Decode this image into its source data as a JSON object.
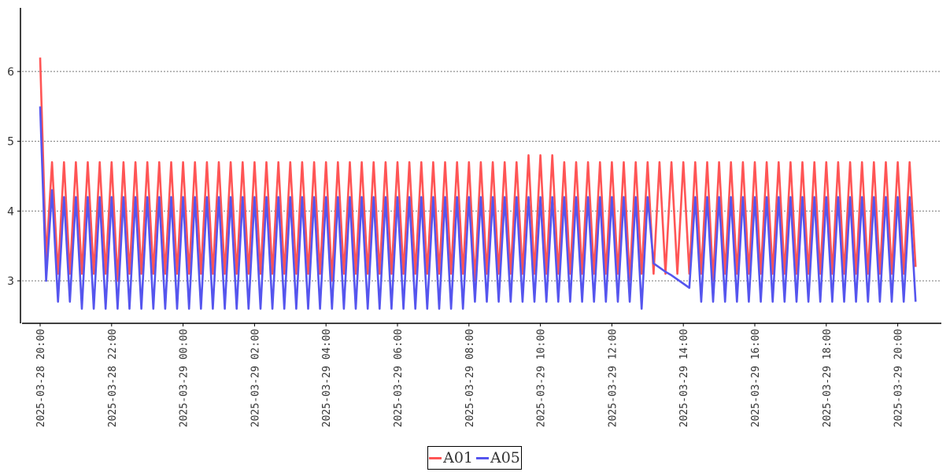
{
  "chart_data": {
    "type": "line",
    "title": "",
    "xlabel": "",
    "ylabel": "",
    "x_start": "2025-03-28 20:00",
    "x_step_minutes": 10,
    "ylim": [
      2.4,
      6.9
    ],
    "yticks": [
      "3",
      "4",
      "5",
      "6"
    ],
    "ytick_values": [
      3,
      4,
      5,
      6
    ],
    "grid": "horizontal dotted",
    "legend_position": "bottom-center",
    "xticks": [
      "2025-03-28 20:00",
      "2025-03-28 22:00",
      "2025-03-29 00:00",
      "2025-03-29 02:00",
      "2025-03-29 04:00",
      "2025-03-29 06:00",
      "2025-03-29 08:00",
      "2025-03-29 10:00",
      "2025-03-29 12:00",
      "2025-03-29 14:00",
      "2025-03-29 16:00",
      "2025-03-29 18:00",
      "2025-03-29 20:00"
    ],
    "xtick_minutes": [
      0,
      120,
      240,
      360,
      480,
      600,
      720,
      840,
      960,
      1080,
      1200,
      1320,
      1440
    ],
    "series": [
      {
        "name": "A01",
        "color": "#ff5555",
        "values": [
          6.2,
          3.3,
          4.7,
          3.1,
          4.7,
          3.1,
          4.7,
          3.1,
          4.7,
          3.1,
          4.7,
          3.1,
          4.7,
          3.0,
          4.7,
          3.1,
          4.7,
          3.1,
          4.7,
          3.1,
          4.7,
          3.1,
          4.7,
          3.1,
          4.7,
          3.1,
          4.7,
          3.1,
          4.7,
          3.1,
          4.7,
          3.1,
          4.7,
          3.1,
          4.7,
          3.1,
          4.7,
          3.1,
          4.7,
          3.1,
          4.7,
          3.1,
          4.7,
          3.1,
          4.7,
          3.1,
          4.7,
          3.1,
          4.7,
          3.0,
          4.7,
          3.1,
          4.7,
          3.1,
          4.7,
          3.1,
          4.7,
          3.1,
          4.7,
          3.1,
          4.7,
          3.1,
          4.7,
          3.1,
          4.7,
          3.1,
          4.7,
          3.1,
          4.7,
          3.1,
          4.7,
          3.1,
          4.7,
          3.0,
          4.7,
          3.1,
          4.7,
          3.1,
          4.7,
          3.1,
          4.7,
          3.1,
          4.8,
          3.1,
          4.8,
          3.1,
          4.8,
          3.1,
          4.7,
          3.1,
          4.7,
          3.1,
          4.7,
          3.1,
          4.7,
          3.1,
          4.7,
          3.1,
          4.7,
          3.0,
          4.7,
          3.1,
          4.7,
          3.1,
          4.7,
          3.1,
          4.7,
          3.1,
          4.7,
          3.1,
          4.7,
          3.1,
          4.7,
          3.0,
          4.7,
          3.1,
          4.7,
          3.1,
          4.7,
          3.1,
          4.7,
          3.1,
          4.7,
          3.1,
          4.7,
          3.1,
          4.7,
          3.1,
          4.7,
          3.1,
          4.7,
          3.1,
          4.7,
          3.1,
          4.7,
          3.1,
          4.7,
          3.1,
          4.7,
          3.1,
          4.7,
          3.1,
          4.7,
          3.1,
          4.7,
          3.1,
          4.7,
          3.2
        ]
      },
      {
        "name": "A05",
        "color": "#5555ee",
        "values": [
          5.5,
          3.0,
          4.3,
          2.7,
          4.2,
          2.7,
          4.2,
          2.6,
          4.2,
          2.6,
          4.2,
          2.6,
          4.2,
          2.6,
          4.2,
          2.6,
          4.2,
          2.6,
          4.2,
          2.6,
          4.2,
          2.6,
          4.2,
          2.6,
          4.2,
          2.6,
          4.2,
          2.6,
          4.2,
          2.6,
          4.2,
          2.6,
          4.2,
          2.6,
          4.2,
          2.6,
          4.2,
          2.6,
          4.2,
          2.6,
          4.2,
          2.6,
          4.2,
          2.6,
          4.2,
          2.6,
          4.2,
          2.6,
          4.2,
          2.6,
          4.2,
          2.6,
          4.2,
          2.6,
          4.2,
          2.6,
          4.2,
          2.6,
          4.2,
          2.6,
          4.2,
          2.6,
          4.2,
          2.6,
          4.2,
          2.6,
          4.2,
          2.6,
          4.2,
          2.6,
          4.2,
          2.6,
          4.2,
          2.7,
          4.2,
          2.7,
          4.2,
          2.7,
          4.2,
          2.7,
          4.2,
          2.7,
          4.2,
          2.7,
          4.2,
          2.7,
          4.2,
          2.7,
          4.2,
          2.7,
          4.2,
          2.7,
          4.2,
          2.7,
          4.2,
          2.7,
          4.2,
          2.7,
          4.2,
          2.7,
          4.2,
          2.6,
          4.2,
          3.25,
          3.19,
          3.13,
          3.08,
          3.02,
          2.96,
          2.9,
          4.2,
          2.7,
          4.2,
          2.7,
          4.2,
          2.7,
          4.2,
          2.7,
          4.2,
          2.7,
          4.2,
          2.7,
          4.2,
          2.7,
          4.2,
          2.7,
          4.2,
          2.7,
          4.2,
          2.7,
          4.2,
          2.7,
          4.2,
          2.7,
          4.2,
          2.7,
          4.2,
          2.7,
          4.2,
          2.7,
          4.2,
          2.7,
          4.2,
          2.7,
          4.2,
          2.7,
          4.2,
          2.7
        ]
      }
    ]
  }
}
